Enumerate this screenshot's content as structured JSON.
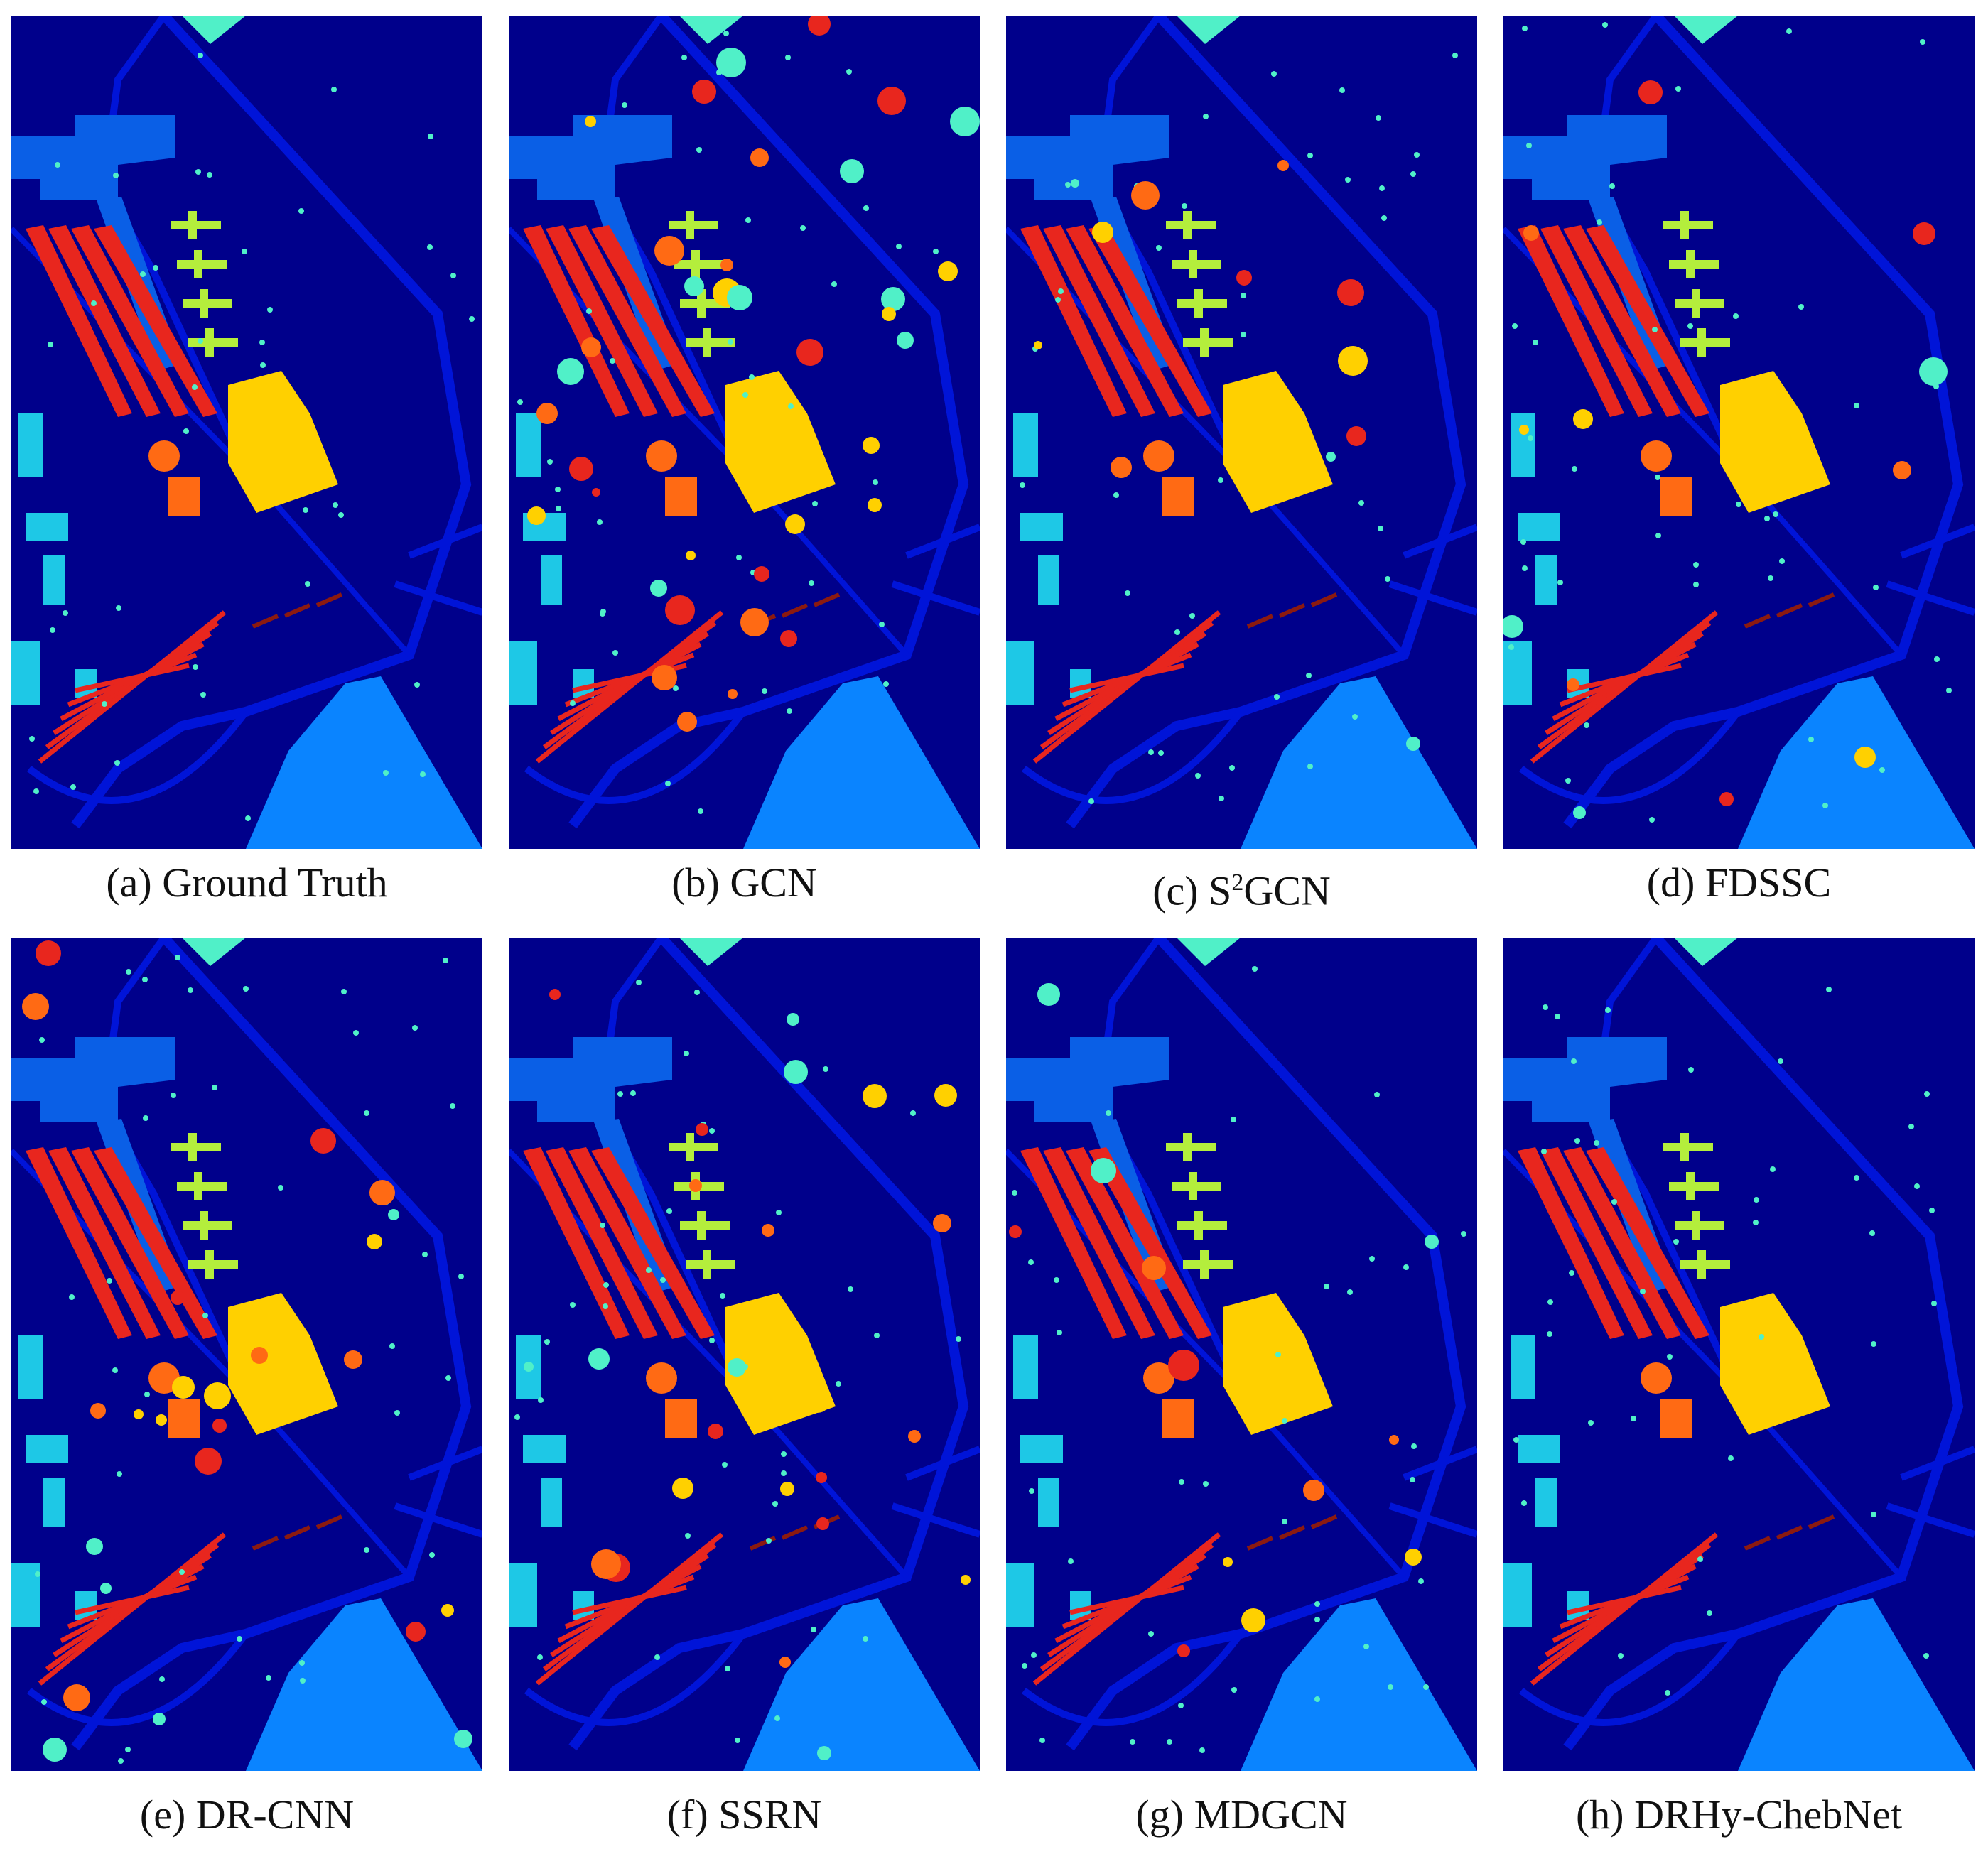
{
  "figure": {
    "colors": {
      "background": "#00008b",
      "road": "#0014d8",
      "meadow_light": "#0a84ff",
      "meadow": "#0a5fe6",
      "gravel_yellow": "#ffd000",
      "trees_cyan": "#1ec8e6",
      "bitumen_red": "#e8261e",
      "bricks_darkred": "#8b1a10",
      "shadow_orange": "#ff6a14",
      "aqua": "#50f0c8",
      "lime": "#b4ee3c"
    },
    "panels": [
      {
        "id": "a",
        "caption": "(a) Ground Truth",
        "noise": 0
      },
      {
        "id": "b",
        "caption": "(b) GCN",
        "noise": 3
      },
      {
        "id": "c",
        "caption_prefix": "(c) S",
        "caption_sup": "2",
        "caption_suffix": "GCN",
        "noise": 1
      },
      {
        "id": "d",
        "caption": "(d) FDSSC",
        "noise": 1
      },
      {
        "id": "e",
        "caption": "(e) DR-CNN",
        "noise": 2
      },
      {
        "id": "f",
        "caption": "(f) SSRN",
        "noise": 2
      },
      {
        "id": "g",
        "caption": "(g) MDGCN",
        "noise": 1
      },
      {
        "id": "h",
        "caption": "(h) DRHy-ChebNet",
        "noise": 0
      }
    ]
  }
}
